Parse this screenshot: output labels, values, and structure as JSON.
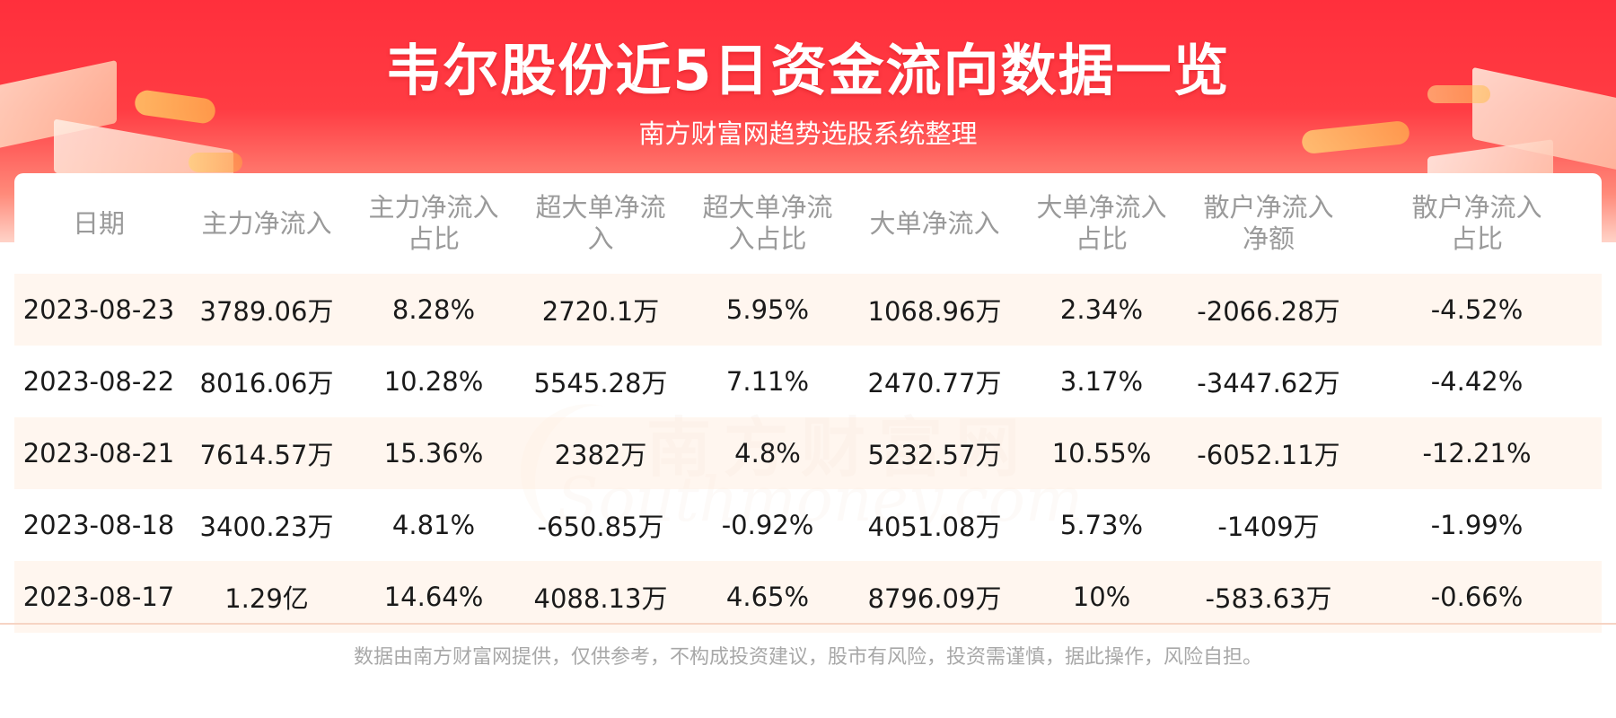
{
  "header": {
    "title": "韦尔股份近5日资金流向数据一览",
    "subtitle": "南方财富网趋势选股系统整理"
  },
  "watermark": {
    "cn": "南方财富网",
    "en": "Southmoney.com"
  },
  "table": {
    "columns": [
      "日期",
      "主力净流入",
      "主力净流入占比",
      "超大单净流入",
      "超大单净流入占比",
      "大单净流入",
      "大单净流入占比",
      "散户净流入净额",
      "散户净流入占比"
    ],
    "rows": [
      [
        "2023-08-23",
        "3789.06万",
        "8.28%",
        "2720.1万",
        "5.95%",
        "1068.96万",
        "2.34%",
        "-2066.28万",
        "-4.52%"
      ],
      [
        "2023-08-22",
        "8016.06万",
        "10.28%",
        "5545.28万",
        "7.11%",
        "2470.77万",
        "3.17%",
        "-3447.62万",
        "-4.42%"
      ],
      [
        "2023-08-21",
        "7614.57万",
        "15.36%",
        "2382万",
        "4.8%",
        "5232.57万",
        "10.55%",
        "-6052.11万",
        "-12.21%"
      ],
      [
        "2023-08-18",
        "3400.23万",
        "4.81%",
        "-650.85万",
        "-0.92%",
        "4051.08万",
        "5.73%",
        "-1409万",
        "-1.99%"
      ],
      [
        "2023-08-17",
        "1.29亿",
        "14.64%",
        "4088.13万",
        "4.65%",
        "8796.09万",
        "10%",
        "-583.63万",
        "-0.66%"
      ]
    ]
  },
  "footer": {
    "disclaimer": "数据由南方财富网提供，仅供参考，不构成投资建议，股市有风险，投资需谨慎，据此操作，风险自担。"
  },
  "colors": {
    "banner_red": "#ff2f3c",
    "header_text": "#9a9a9a",
    "row_tint": "#fff3ea"
  }
}
